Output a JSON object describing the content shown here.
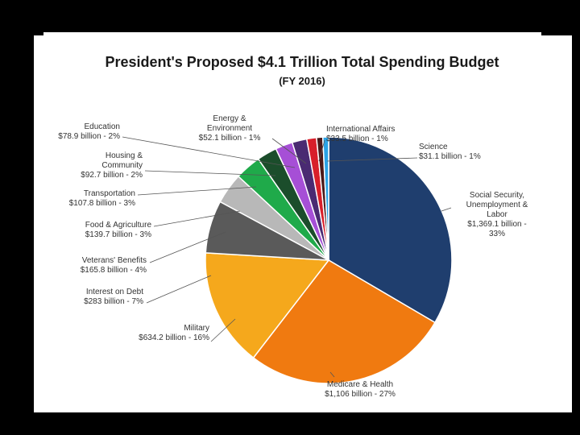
{
  "chart_data": {
    "type": "pie",
    "title": "President's Proposed $4.1 Trillion Total Spending Budget",
    "subtitle": "(FY 2016)",
    "unit": "billion",
    "slices": [
      {
        "name": "Social Security, Unemployment & Labor",
        "value": 1369.1,
        "percent": 33,
        "color": "#1f3e6e",
        "label": [
          "Social Security,",
          "Unemployment  &",
          "Labor",
          "$1,369.1 billion -",
          "33%"
        ]
      },
      {
        "name": "Medicare & Health",
        "value": 1106,
        "percent": 27,
        "color": "#f07a10",
        "label": [
          "Medicare & Health",
          "$1,106 billion - 27%"
        ]
      },
      {
        "name": "Military",
        "value": 634.2,
        "percent": 16,
        "color": "#f5a81c",
        "label": [
          "Military",
          "$634.2 billion - 16%"
        ]
      },
      {
        "name": "Interest on Debt",
        "value": 283,
        "percent": 7,
        "color": "#5a5a5a",
        "label": [
          "Interest on Debt",
          "$283 billion - 7%"
        ]
      },
      {
        "name": "Veterans' Benefits",
        "value": 165.8,
        "percent": 4,
        "color": "#b8b8b8",
        "label": [
          "Veterans' Benefits",
          "$165.8 billion - 4%"
        ]
      },
      {
        "name": "Food & Agriculture",
        "value": 139.7,
        "percent": 3,
        "color": "#1faa4a",
        "label": [
          "Food & Agriculture",
          "$139.7 billion - 3%"
        ]
      },
      {
        "name": "Transportation",
        "value": 107.8,
        "percent": 3,
        "color": "#1b4d2b",
        "label": [
          "Transportation",
          "$107.8 billion - 3%"
        ]
      },
      {
        "name": "Housing & Community",
        "value": 92.7,
        "percent": 2,
        "color": "#a64fd6",
        "label": [
          "Housing &",
          "Community",
          "$92.7 billion - 2%"
        ]
      },
      {
        "name": "Education",
        "value": 78.9,
        "percent": 2,
        "color": "#4a2a72",
        "label": [
          "Education",
          "$78.9 billion - 2%"
        ]
      },
      {
        "name": "Energy & Environment",
        "value": 52.1,
        "percent": 1,
        "color": "#d81f2a",
        "label": [
          "Energy &",
          "Environment",
          "$52.1 billion - 1%"
        ]
      },
      {
        "name": "International Affairs",
        "value": 33.5,
        "percent": 1,
        "color": "#4a1a1a",
        "label": [
          "International  Affairs",
          "$33.5 billion - 1%"
        ]
      },
      {
        "name": "Science",
        "value": 31.1,
        "percent": 1,
        "color": "#2aa3e6",
        "label": [
          "Science",
          "$31.1 billion - 1%"
        ]
      }
    ]
  }
}
